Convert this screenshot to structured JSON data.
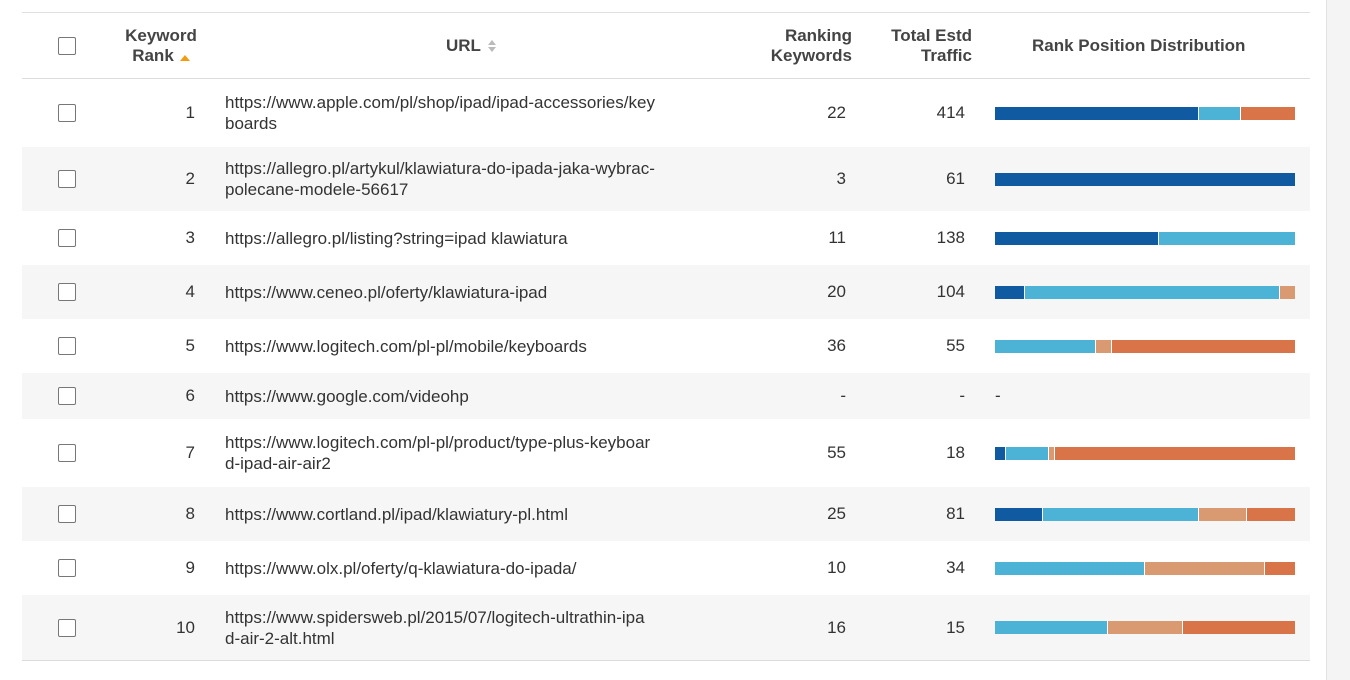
{
  "header": {
    "rank_line1": "Keyword",
    "rank_line2": "Rank",
    "url": "URL",
    "ranking_kw_line1": "Ranking",
    "ranking_kw_line2": "Keywords",
    "traffic_line1": "Total Estd",
    "traffic_line2": "Traffic",
    "distribution": "Rank Position Distribution"
  },
  "colors": {
    "dark_blue": "#0f5aa0",
    "light_blue": "#4db3d6",
    "light_orange": "#d99a72",
    "orange": "#d97449",
    "sort_active": "#f39c12"
  },
  "rows": [
    {
      "rank": "1",
      "url_line1": "https://www.apple.com/pl/shop/ipad/ipad-accessories/key",
      "url_line2": "boards",
      "ranking_keywords": "22",
      "traffic": "414",
      "dist": [
        0.68,
        0.14,
        0,
        0.18
      ],
      "dash": ""
    },
    {
      "rank": "2",
      "url_line1": "https://allegro.pl/artykul/klawiatura-do-ipada-jaka-wybrac-",
      "url_line2": "polecane-modele-56617",
      "ranking_keywords": "3",
      "traffic": "61",
      "dist": [
        1.0,
        0,
        0,
        0
      ],
      "dash": ""
    },
    {
      "rank": "3",
      "url_line1": "https://allegro.pl/listing?string=ipad klawiatura",
      "url_line2": "",
      "ranking_keywords": "11",
      "traffic": "138",
      "dist": [
        0.545,
        0.455,
        0,
        0
      ],
      "dash": ""
    },
    {
      "rank": "4",
      "url_line1": "https://www.ceneo.pl/oferty/klawiatura-ipad",
      "url_line2": "",
      "ranking_keywords": "20",
      "traffic": "104",
      "dist": [
        0.1,
        0.85,
        0.05,
        0
      ],
      "dash": ""
    },
    {
      "rank": "5",
      "url_line1": "https://www.logitech.com/pl-pl/mobile/keyboards",
      "url_line2": "",
      "ranking_keywords": "36",
      "traffic": "55",
      "dist": [
        0,
        0.335,
        0.055,
        0.61
      ],
      "dash": ""
    },
    {
      "rank": "6",
      "url_line1": "https://www.google.com/videohp",
      "url_line2": "",
      "ranking_keywords": "-",
      "traffic": "-",
      "dist": [
        0,
        0,
        0,
        0
      ],
      "dash": "-"
    },
    {
      "rank": "7",
      "url_line1": "https://www.logitech.com/pl-pl/product/type-plus-keyboar",
      "url_line2": "d-ipad-air-air2",
      "ranking_keywords": "55",
      "traffic": "18",
      "dist": [
        0.035,
        0.145,
        0.02,
        0.8
      ],
      "dash": ""
    },
    {
      "rank": "8",
      "url_line1": "https://www.cortland.pl/ipad/klawiatury-pl.html",
      "url_line2": "",
      "ranking_keywords": "25",
      "traffic": "81",
      "dist": [
        0.16,
        0.52,
        0.16,
        0.16
      ],
      "dash": ""
    },
    {
      "rank": "9",
      "url_line1": "https://www.olx.pl/oferty/q-klawiatura-do-ipada/",
      "url_line2": "",
      "ranking_keywords": "10",
      "traffic": "34",
      "dist": [
        0,
        0.5,
        0.4,
        0.1
      ],
      "dash": ""
    },
    {
      "rank": "10",
      "url_line1": "https://www.spidersweb.pl/2015/07/logitech-ultrathin-ipa",
      "url_line2": "d-air-2-alt.html",
      "ranking_keywords": "16",
      "traffic": "15",
      "dist": [
        0,
        0.375,
        0.25,
        0.375
      ],
      "dash": ""
    }
  ]
}
